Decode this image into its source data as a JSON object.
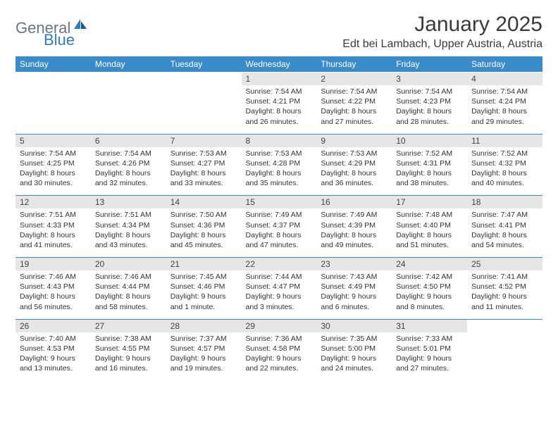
{
  "logo": {
    "text1": "General",
    "text2": "Blue"
  },
  "title": "January 2025",
  "location": "Edt bei Lambach, Upper Austria, Austria",
  "colors": {
    "header_bg": "#3a8bc9",
    "header_text": "#ffffff",
    "daynum_bg": "#e6e6e6",
    "row_divider": "#3a8bc9",
    "logo_gray": "#6b7280",
    "logo_blue": "#2f7bbf",
    "body_text": "#333333",
    "page_bg": "#ffffff"
  },
  "weekdays": [
    "Sunday",
    "Monday",
    "Tuesday",
    "Wednesday",
    "Thursday",
    "Friday",
    "Saturday"
  ],
  "weeks": [
    [
      null,
      null,
      null,
      {
        "n": "1",
        "rise": "7:54 AM",
        "set": "4:21 PM",
        "dl": "8 hours and 26 minutes."
      },
      {
        "n": "2",
        "rise": "7:54 AM",
        "set": "4:22 PM",
        "dl": "8 hours and 27 minutes."
      },
      {
        "n": "3",
        "rise": "7:54 AM",
        "set": "4:23 PM",
        "dl": "8 hours and 28 minutes."
      },
      {
        "n": "4",
        "rise": "7:54 AM",
        "set": "4:24 PM",
        "dl": "8 hours and 29 minutes."
      }
    ],
    [
      {
        "n": "5",
        "rise": "7:54 AM",
        "set": "4:25 PM",
        "dl": "8 hours and 30 minutes."
      },
      {
        "n": "6",
        "rise": "7:54 AM",
        "set": "4:26 PM",
        "dl": "8 hours and 32 minutes."
      },
      {
        "n": "7",
        "rise": "7:53 AM",
        "set": "4:27 PM",
        "dl": "8 hours and 33 minutes."
      },
      {
        "n": "8",
        "rise": "7:53 AM",
        "set": "4:28 PM",
        "dl": "8 hours and 35 minutes."
      },
      {
        "n": "9",
        "rise": "7:53 AM",
        "set": "4:29 PM",
        "dl": "8 hours and 36 minutes."
      },
      {
        "n": "10",
        "rise": "7:52 AM",
        "set": "4:31 PM",
        "dl": "8 hours and 38 minutes."
      },
      {
        "n": "11",
        "rise": "7:52 AM",
        "set": "4:32 PM",
        "dl": "8 hours and 40 minutes."
      }
    ],
    [
      {
        "n": "12",
        "rise": "7:51 AM",
        "set": "4:33 PM",
        "dl": "8 hours and 41 minutes."
      },
      {
        "n": "13",
        "rise": "7:51 AM",
        "set": "4:34 PM",
        "dl": "8 hours and 43 minutes."
      },
      {
        "n": "14",
        "rise": "7:50 AM",
        "set": "4:36 PM",
        "dl": "8 hours and 45 minutes."
      },
      {
        "n": "15",
        "rise": "7:49 AM",
        "set": "4:37 PM",
        "dl": "8 hours and 47 minutes."
      },
      {
        "n": "16",
        "rise": "7:49 AM",
        "set": "4:39 PM",
        "dl": "8 hours and 49 minutes."
      },
      {
        "n": "17",
        "rise": "7:48 AM",
        "set": "4:40 PM",
        "dl": "8 hours and 51 minutes."
      },
      {
        "n": "18",
        "rise": "7:47 AM",
        "set": "4:41 PM",
        "dl": "8 hours and 54 minutes."
      }
    ],
    [
      {
        "n": "19",
        "rise": "7:46 AM",
        "set": "4:43 PM",
        "dl": "8 hours and 56 minutes."
      },
      {
        "n": "20",
        "rise": "7:46 AM",
        "set": "4:44 PM",
        "dl": "8 hours and 58 minutes."
      },
      {
        "n": "21",
        "rise": "7:45 AM",
        "set": "4:46 PM",
        "dl": "9 hours and 1 minute."
      },
      {
        "n": "22",
        "rise": "7:44 AM",
        "set": "4:47 PM",
        "dl": "9 hours and 3 minutes."
      },
      {
        "n": "23",
        "rise": "7:43 AM",
        "set": "4:49 PM",
        "dl": "9 hours and 6 minutes."
      },
      {
        "n": "24",
        "rise": "7:42 AM",
        "set": "4:50 PM",
        "dl": "9 hours and 8 minutes."
      },
      {
        "n": "25",
        "rise": "7:41 AM",
        "set": "4:52 PM",
        "dl": "9 hours and 11 minutes."
      }
    ],
    [
      {
        "n": "26",
        "rise": "7:40 AM",
        "set": "4:53 PM",
        "dl": "9 hours and 13 minutes."
      },
      {
        "n": "27",
        "rise": "7:38 AM",
        "set": "4:55 PM",
        "dl": "9 hours and 16 minutes."
      },
      {
        "n": "28",
        "rise": "7:37 AM",
        "set": "4:57 PM",
        "dl": "9 hours and 19 minutes."
      },
      {
        "n": "29",
        "rise": "7:36 AM",
        "set": "4:58 PM",
        "dl": "9 hours and 22 minutes."
      },
      {
        "n": "30",
        "rise": "7:35 AM",
        "set": "5:00 PM",
        "dl": "9 hours and 24 minutes."
      },
      {
        "n": "31",
        "rise": "7:33 AM",
        "set": "5:01 PM",
        "dl": "9 hours and 27 minutes."
      },
      null
    ]
  ],
  "labels": {
    "sunrise": "Sunrise:",
    "sunset": "Sunset:",
    "daylight": "Daylight:"
  }
}
